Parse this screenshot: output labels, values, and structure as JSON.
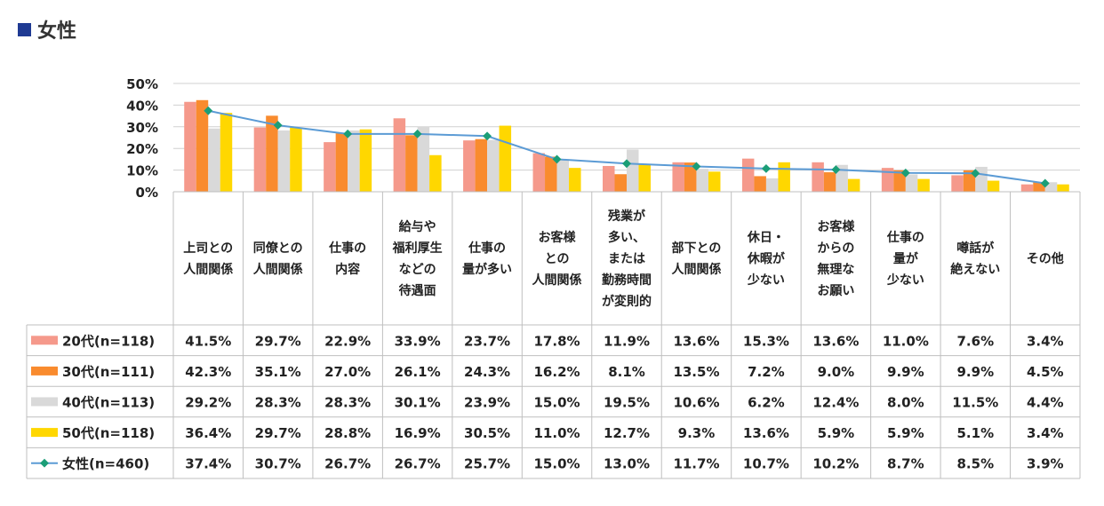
{
  "heading": "女性",
  "colors": {
    "heading_square": "#1f3a93",
    "s20": "#f5998b",
    "s30": "#f98b2e",
    "s40": "#d9d9d9",
    "s50": "#ffd700",
    "line": "#5b9bd5",
    "marker": "#1b9e77",
    "grid": "#d0d0d0",
    "table_border": "#bfbfbf"
  },
  "chart_data": {
    "type": "bar",
    "ylim": [
      0,
      50
    ],
    "yticks": [
      "0%",
      "10%",
      "20%",
      "30%",
      "40%",
      "50%"
    ],
    "categories": [
      [
        "上司との",
        "人間関係"
      ],
      [
        "同僚との",
        "人間関係"
      ],
      [
        "仕事の",
        "内容"
      ],
      [
        "給与や",
        "福利厚生",
        "などの",
        "待遇面"
      ],
      [
        "仕事の",
        "量が多い"
      ],
      [
        "お客様",
        "との",
        "人間関係"
      ],
      [
        "残業が",
        "多い、",
        "または",
        "勤務時間",
        "が変則的"
      ],
      [
        "部下との",
        "人間関係"
      ],
      [
        "休日・",
        "休暇が",
        "少ない"
      ],
      [
        "お客様",
        "からの",
        "無理な",
        "お願い"
      ],
      [
        "仕事の",
        "量が",
        "少ない"
      ],
      [
        "噂話が",
        "絶えない"
      ],
      [
        "その他"
      ]
    ],
    "series": [
      {
        "name": "20代(n=118)",
        "kind": "bar",
        "color_key": "s20",
        "values": [
          41.5,
          29.7,
          22.9,
          33.9,
          23.7,
          17.8,
          11.9,
          13.6,
          15.3,
          13.6,
          11.0,
          7.6,
          3.4
        ],
        "labels": [
          "41.5%",
          "29.7%",
          "22.9%",
          "33.9%",
          "23.7%",
          "17.8%",
          "11.9%",
          "13.6%",
          "15.3%",
          "13.6%",
          "11.0%",
          "7.6%",
          "3.4%"
        ]
      },
      {
        "name": "30代(n=111)",
        "kind": "bar",
        "color_key": "s30",
        "values": [
          42.3,
          35.1,
          27.0,
          26.1,
          24.3,
          16.2,
          8.1,
          13.5,
          7.2,
          9.0,
          9.9,
          9.9,
          4.5
        ],
        "labels": [
          "42.3%",
          "35.1%",
          "27.0%",
          "26.1%",
          "24.3%",
          "16.2%",
          "8.1%",
          "13.5%",
          "7.2%",
          "9.0%",
          "9.9%",
          "9.9%",
          "4.5%"
        ]
      },
      {
        "name": "40代(n=113)",
        "kind": "bar",
        "color_key": "s40",
        "values": [
          29.2,
          28.3,
          28.3,
          30.1,
          23.9,
          15.0,
          19.5,
          10.6,
          6.2,
          12.4,
          8.0,
          11.5,
          4.4
        ],
        "labels": [
          "29.2%",
          "28.3%",
          "28.3%",
          "30.1%",
          "23.9%",
          "15.0%",
          "19.5%",
          "10.6%",
          "6.2%",
          "12.4%",
          "8.0%",
          "11.5%",
          "4.4%"
        ]
      },
      {
        "name": "50代(n=118)",
        "kind": "bar",
        "color_key": "s50",
        "values": [
          36.4,
          29.7,
          28.8,
          16.9,
          30.5,
          11.0,
          12.7,
          9.3,
          13.6,
          5.9,
          5.9,
          5.1,
          3.4
        ],
        "labels": [
          "36.4%",
          "29.7%",
          "28.8%",
          "16.9%",
          "30.5%",
          "11.0%",
          "12.7%",
          "9.3%",
          "13.6%",
          "5.9%",
          "5.9%",
          "5.1%",
          "3.4%"
        ]
      },
      {
        "name": "女性(n=460)",
        "kind": "line",
        "color_key": "line",
        "values": [
          37.4,
          30.7,
          26.7,
          26.7,
          25.7,
          15.0,
          13.0,
          11.7,
          10.7,
          10.2,
          8.7,
          8.5,
          3.9
        ],
        "labels": [
          "37.4%",
          "30.7%",
          "26.7%",
          "26.7%",
          "25.7%",
          "15.0%",
          "13.0%",
          "11.7%",
          "10.7%",
          "10.2%",
          "8.7%",
          "8.5%",
          "3.9%"
        ]
      }
    ],
    "grid": true,
    "legend": "data-table-left"
  }
}
